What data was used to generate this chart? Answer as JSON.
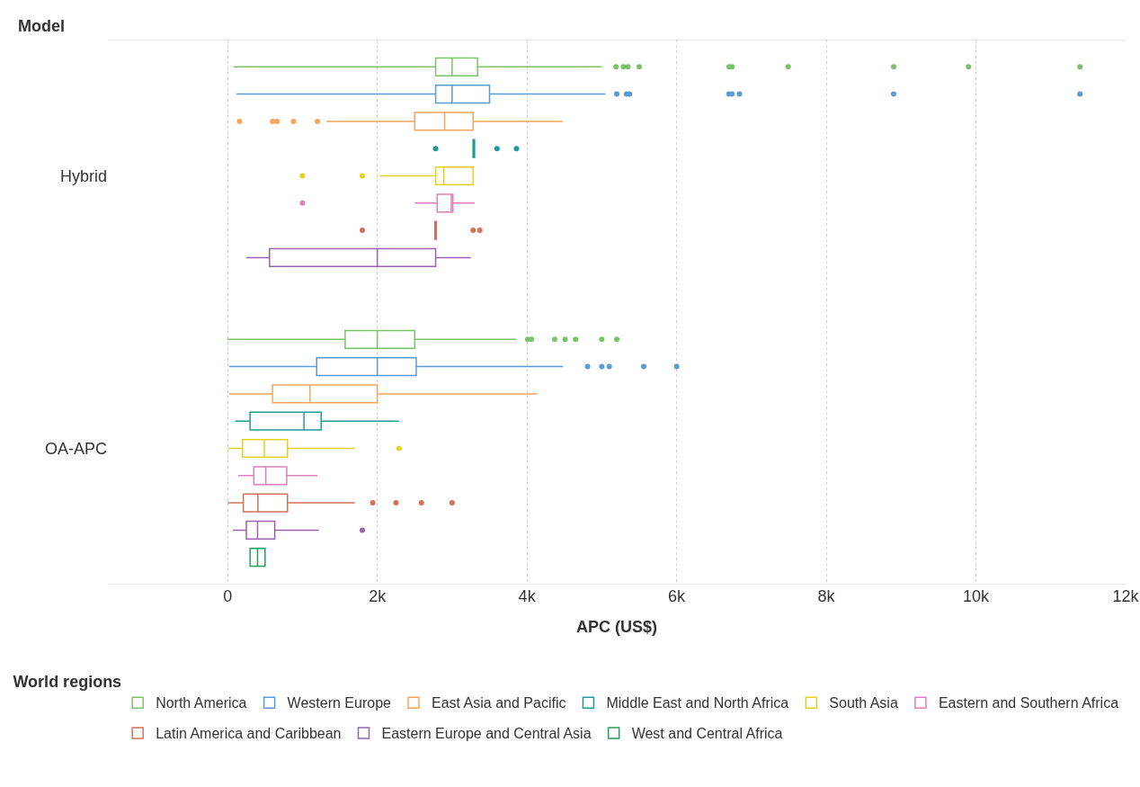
{
  "chart_data": {
    "type": "box",
    "orientation": "horizontal",
    "ylabel": "Model",
    "xlabel": "APC (US$)",
    "legend_title": "World regions",
    "legend": "bottom",
    "grid": "x",
    "categories": [
      "Hybrid",
      "OA-APC"
    ],
    "xlim": [
      -1600,
      12000
    ],
    "xticks": [
      0,
      {
        "value": 2000,
        "label": "2k"
      },
      {
        "value": 4000,
        "label": "4k"
      },
      {
        "value": 6000,
        "label": "6k"
      },
      {
        "value": 8000,
        "label": "8k"
      },
      {
        "value": 10000,
        "label": "10k"
      },
      {
        "value": 12000,
        "label": "12k"
      }
    ],
    "series": [
      {
        "name": "North America",
        "color": "#79c36a",
        "boxes": [
          {
            "low": 80,
            "q1": 2780,
            "median": 3000,
            "q3": 3340,
            "high": 5000,
            "outliers": [
              5190,
              5290,
              5350,
              5500,
              6700,
              6740,
              7490,
              8900,
              9900,
              11390
            ]
          },
          {
            "low": 0,
            "q1": 1570,
            "median": 2000,
            "q3": 2500,
            "high": 3860,
            "outliers": [
              4010,
              4060,
              4370,
              4510,
              4650,
              5000,
              5200
            ]
          }
        ]
      },
      {
        "name": "Western Europe",
        "color": "#5b9bd5",
        "boxes": [
          {
            "low": 120,
            "q1": 2780,
            "median": 3000,
            "q3": 3500,
            "high": 5050,
            "outliers": [
              5200,
              5330,
              5370,
              6700,
              6740,
              6840,
              8900,
              11390
            ]
          },
          {
            "low": 20,
            "q1": 1190,
            "median": 2000,
            "q3": 2520,
            "high": 4480,
            "outliers": [
              4810,
              5000,
              5100,
              5560,
              6000
            ]
          }
        ]
      },
      {
        "name": "East Asia and Pacific",
        "color": "#f8a45b",
        "boxes": [
          {
            "low": 1320,
            "q1": 2500,
            "median": 2900,
            "q3": 3280,
            "high": 4480,
            "outliers": [
              160,
              600,
              660,
              880,
              1200
            ]
          },
          {
            "low": 20,
            "q1": 600,
            "median": 1100,
            "q3": 2000,
            "high": 4140
          }
        ]
      },
      {
        "name": "Middle East and North Africa",
        "color": "#1f9a95",
        "boxes": [
          {
            "low": 3280,
            "q1": 3280,
            "median": 3290,
            "q3": 3300,
            "high": 3300,
            "outliers": [
              2780,
              3600,
              3860
            ]
          },
          {
            "low": 100,
            "q1": 300,
            "median": 1020,
            "q3": 1250,
            "high": 2290
          }
        ]
      },
      {
        "name": "South Asia",
        "color": "#e5d21b",
        "boxes": [
          {
            "low": 2030,
            "q1": 2780,
            "median": 2890,
            "q3": 3280,
            "high": 3280,
            "outliers": [
              1000,
              1800
            ]
          },
          {
            "low": 10,
            "q1": 200,
            "median": 490,
            "q3": 800,
            "high": 1700,
            "outliers": [
              2290
            ]
          }
        ]
      },
      {
        "name": "Eastern and Southern Africa",
        "color": "#e07fbd",
        "boxes": [
          {
            "low": 2500,
            "q1": 2800,
            "median": 2990,
            "q3": 3010,
            "high": 3300,
            "outliers": [
              1000
            ]
          },
          {
            "low": 140,
            "q1": 350,
            "median": 510,
            "q3": 790,
            "high": 1200
          }
        ]
      },
      {
        "name": "Latin America and Caribbean",
        "color": "#d4715a",
        "boxes": [
          {
            "low": 2770,
            "q1": 2770,
            "median": 2780,
            "q3": 2790,
            "high": 2790,
            "outliers": [
              1800,
              3280,
              3370
            ]
          },
          {
            "low": 0,
            "q1": 210,
            "median": 405,
            "q3": 800,
            "high": 1700,
            "outliers": [
              1940,
              2250,
              2590,
              3000
            ]
          }
        ]
      },
      {
        "name": "Eastern Europe and Central Asia",
        "color": "#9b62b2",
        "boxes": [
          {
            "low": 250,
            "q1": 560,
            "median": 2000,
            "q3": 2780,
            "high": 3250
          },
          {
            "low": 70,
            "q1": 250,
            "median": 400,
            "q3": 630,
            "high": 1220,
            "outliers": [
              1800
            ]
          }
        ]
      },
      {
        "name": "West and Central Africa",
        "color": "#2a9a5a",
        "boxes": [
          null,
          {
            "low": 300,
            "q1": 300,
            "median": 400,
            "q3": 500,
            "high": 500
          }
        ]
      }
    ]
  }
}
